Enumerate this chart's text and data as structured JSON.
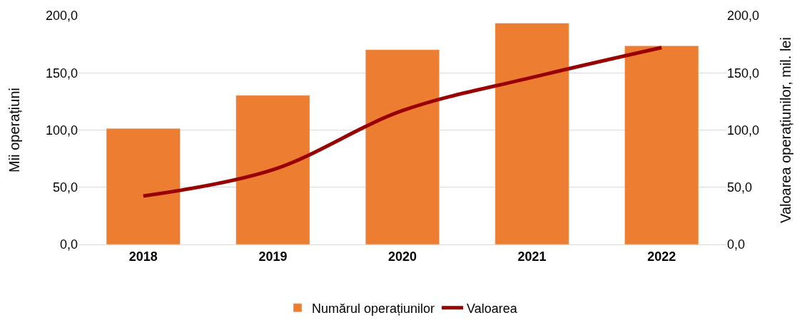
{
  "chart_data": {
    "type": "bar",
    "categories": [
      "2018",
      "2019",
      "2020",
      "2021",
      "2022"
    ],
    "series": [
      {
        "name": "Numărul operațiunilor",
        "color": "#ed7d31",
        "values": [
          101.4,
          130.4,
          170.3,
          193.5,
          173.7
        ]
      },
      {
        "name": "Valoarea",
        "color": "#990000",
        "type": "line",
        "axis": "y2",
        "values": [
          42.4,
          65.3,
          117,
          146,
          172.1
        ]
      }
    ],
    "ylabel": "Mii operațiuni",
    "y2label": "Valoarea operațiunilor, mil. lei",
    "ylim": [
      0,
      200
    ],
    "yticks": [
      {
        "value": 0,
        "label": "0,0"
      },
      {
        "value": 50,
        "label": "50,0"
      },
      {
        "value": 100,
        "label": "100,0"
      },
      {
        "value": 150,
        "label": "150,0"
      },
      {
        "value": 200,
        "label": "200,0"
      }
    ],
    "y2lim": [
      0,
      200
    ],
    "y2ticks": [
      {
        "value": 0,
        "label": "0,0"
      },
      {
        "value": 50,
        "label": "50,0"
      },
      {
        "value": 100,
        "label": "100,0"
      },
      {
        "value": 150,
        "label": "150,0"
      },
      {
        "value": 200,
        "label": "200,0"
      }
    ],
    "grid": "y",
    "legend": "bottom",
    "marker": "none",
    "line_style": "solid"
  }
}
